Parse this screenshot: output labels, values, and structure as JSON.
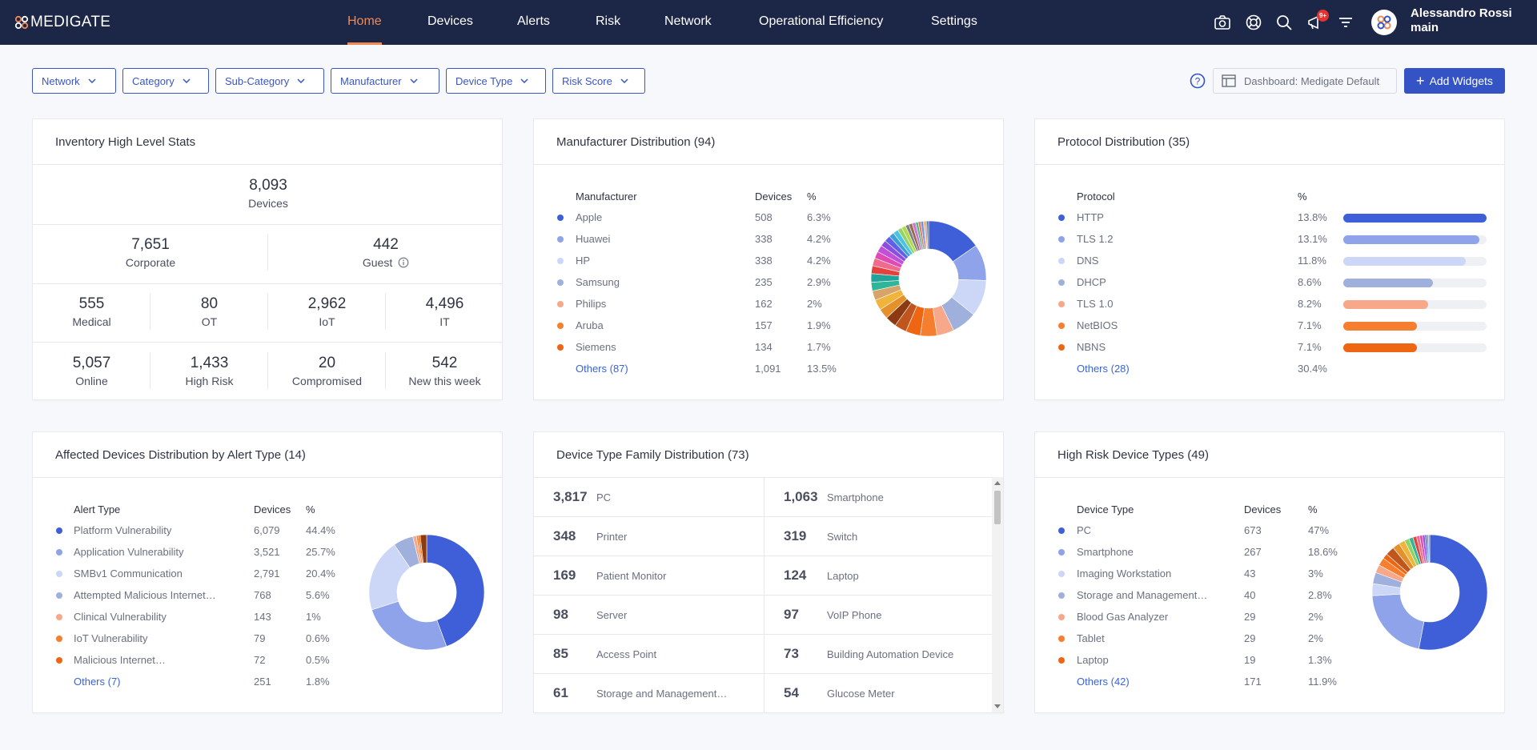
{
  "app": {
    "logo": "MEDIGATE"
  },
  "nav": {
    "items": [
      "Home",
      "Devices",
      "Alerts",
      "Risk",
      "Network",
      "Operational Efficiency",
      "Settings"
    ],
    "active": "Home",
    "notification_badge": "9+"
  },
  "user": {
    "name": "Alessandro Rossi",
    "tenant": "main"
  },
  "filters": [
    "Network",
    "Category",
    "Sub-Category",
    "Manufacturer",
    "Device Type",
    "Risk Score"
  ],
  "dashboard_select": "Dashboard: Medigate Default",
  "add_widgets_label": "Add Widgets",
  "inventory": {
    "title": "Inventory High Level Stats",
    "total": {
      "value": "8,093",
      "label": "Devices"
    },
    "row2": [
      {
        "value": "7,651",
        "label": "Corporate"
      },
      {
        "value": "442",
        "label": "Guest"
      }
    ],
    "row3": [
      {
        "value": "555",
        "label": "Medical"
      },
      {
        "value": "80",
        "label": "OT"
      },
      {
        "value": "2,962",
        "label": "IoT"
      },
      {
        "value": "4,496",
        "label": "IT"
      }
    ],
    "row4": [
      {
        "value": "5,057",
        "label": "Online",
        "color": "#3aa146"
      },
      {
        "value": "1,433",
        "label": "High Risk",
        "color": "#e5413c"
      },
      {
        "value": "20",
        "label": "Compromised",
        "color": "#e5413c"
      },
      {
        "value": "542",
        "label": "New this week",
        "color": "#3453c4"
      }
    ]
  },
  "manufacturer": {
    "title": "Manufacturer Distribution (94)",
    "headers": [
      "Manufacturer",
      "Devices",
      "%"
    ],
    "rows": [
      {
        "name": "Apple",
        "devices": "508",
        "pct": "6.3%",
        "color": "#3f5fd8"
      },
      {
        "name": "Huawei",
        "devices": "338",
        "pct": "4.2%",
        "color": "#8ea3ea"
      },
      {
        "name": "HP",
        "devices": "338",
        "pct": "4.2%",
        "color": "#ccd6f6"
      },
      {
        "name": "Samsung",
        "devices": "235",
        "pct": "2.9%",
        "color": "#9fb0dc"
      },
      {
        "name": "Philips",
        "devices": "162",
        "pct": "2%",
        "color": "#f7a88a"
      },
      {
        "name": "Aruba",
        "devices": "157",
        "pct": "1.9%",
        "color": "#f57f2f"
      },
      {
        "name": "Siemens",
        "devices": "134",
        "pct": "1.7%",
        "color": "#ee6512"
      }
    ],
    "others": {
      "name": "Others (87)",
      "devices": "1,091",
      "pct": "13.5%"
    }
  },
  "protocol": {
    "title": "Protocol Distribution (35)",
    "headers": [
      "Protocol",
      "%"
    ],
    "rows": [
      {
        "name": "HTTP",
        "pct": "13.8%",
        "value": 13.8,
        "color": "#3f5fd8"
      },
      {
        "name": "TLS 1.2",
        "pct": "13.1%",
        "value": 13.1,
        "color": "#8ea3ea"
      },
      {
        "name": "DNS",
        "pct": "11.8%",
        "value": 11.8,
        "color": "#ccd6f6"
      },
      {
        "name": "DHCP",
        "pct": "8.6%",
        "value": 8.6,
        "color": "#9fb0dc"
      },
      {
        "name": "TLS 1.0",
        "pct": "8.2%",
        "value": 8.2,
        "color": "#f7a88a"
      },
      {
        "name": "NetBIOS",
        "pct": "7.1%",
        "value": 7.1,
        "color": "#f57f2f"
      },
      {
        "name": "NBNS",
        "pct": "7.1%",
        "value": 7.1,
        "color": "#ee6512"
      }
    ],
    "others": {
      "name": "Others (28)",
      "pct": "30.4%"
    }
  },
  "alerts": {
    "title": "Affected Devices Distribution by Alert Type (14)",
    "headers": [
      "Alert Type",
      "Devices",
      "%"
    ],
    "rows": [
      {
        "name": "Platform Vulnerability",
        "devices": "6,079",
        "pct": "44.4%",
        "color": "#3f5fd8"
      },
      {
        "name": "Application Vulnerability",
        "devices": "3,521",
        "pct": "25.7%",
        "color": "#8ea3ea"
      },
      {
        "name": "SMBv1 Communication",
        "devices": "2,791",
        "pct": "20.4%",
        "color": "#ccd6f6"
      },
      {
        "name": "Attempted Malicious Internet…",
        "devices": "768",
        "pct": "5.6%",
        "color": "#9fb0dc"
      },
      {
        "name": "Clinical Vulnerability",
        "devices": "143",
        "pct": "1%",
        "color": "#f7a88a"
      },
      {
        "name": "IoT Vulnerability",
        "devices": "79",
        "pct": "0.6%",
        "color": "#f57f2f"
      },
      {
        "name": "Malicious Internet…",
        "devices": "72",
        "pct": "0.5%",
        "color": "#ee6512"
      }
    ],
    "others": {
      "name": "Others (7)",
      "devices": "251",
      "pct": "1.8%"
    }
  },
  "device_family": {
    "title": "Device Type Family Distribution (73)",
    "cells": [
      {
        "num": "3,817",
        "label": "PC"
      },
      {
        "num": "1,063",
        "label": "Smartphone"
      },
      {
        "num": "348",
        "label": "Printer"
      },
      {
        "num": "319",
        "label": "Switch"
      },
      {
        "num": "169",
        "label": "Patient Monitor"
      },
      {
        "num": "124",
        "label": "Laptop"
      },
      {
        "num": "98",
        "label": "Server"
      },
      {
        "num": "97",
        "label": "VoIP Phone"
      },
      {
        "num": "85",
        "label": "Access Point"
      },
      {
        "num": "73",
        "label": "Building Automation Device"
      },
      {
        "num": "61",
        "label": "Storage and Management…"
      },
      {
        "num": "54",
        "label": "Glucose Meter"
      }
    ]
  },
  "high_risk": {
    "title": "High Risk Device Types (49)",
    "headers": [
      "Device Type",
      "Devices",
      "%"
    ],
    "rows": [
      {
        "name": "PC",
        "devices": "673",
        "pct": "47%",
        "color": "#3f5fd8"
      },
      {
        "name": "Smartphone",
        "devices": "267",
        "pct": "18.6%",
        "color": "#8ea3ea"
      },
      {
        "name": "Imaging Workstation",
        "devices": "43",
        "pct": "3%",
        "color": "#ccd6f6"
      },
      {
        "name": "Storage and Management…",
        "devices": "40",
        "pct": "2.8%",
        "color": "#9fb0dc"
      },
      {
        "name": "Blood Gas Analyzer",
        "devices": "29",
        "pct": "2%",
        "color": "#f7a88a"
      },
      {
        "name": "Tablet",
        "devices": "29",
        "pct": "2%",
        "color": "#f57f2f"
      },
      {
        "name": "Laptop",
        "devices": "19",
        "pct": "1.3%",
        "color": "#ee6512"
      }
    ],
    "others": {
      "name": "Others (42)",
      "devices": "171",
      "pct": "11.9%"
    }
  },
  "chart_data": [
    {
      "type": "pie",
      "title": "Manufacturer Distribution (94)",
      "categories": [
        "Apple",
        "Huawei",
        "HP",
        "Samsung",
        "Philips",
        "Aruba",
        "Siemens",
        "Others (87)"
      ],
      "values": [
        6.3,
        4.2,
        4.2,
        2.9,
        2.0,
        1.9,
        1.7,
        13.5
      ],
      "colors": [
        "#3f5fd8",
        "#8ea3ea",
        "#ccd6f6",
        "#9fb0dc",
        "#f7a88a",
        "#f57f2f",
        "#ee6512",
        "#c0561d"
      ],
      "others_tail": [
        1.4,
        1.3,
        1.2,
        1.2,
        1.1,
        1.0,
        1.0,
        0.9,
        0.9,
        0.8,
        0.8,
        0.7,
        0.7,
        0.6,
        0.6,
        0.5,
        0.5,
        0.4,
        0.4,
        0.4,
        0.3,
        0.3,
        0.3,
        0.2,
        0.2,
        0.2
      ],
      "others_tail_colors": [
        "#c0561d",
        "#8b3a12",
        "#e4902b",
        "#f0b43b",
        "#d6a46a",
        "#2fb59a",
        "#22a39a",
        "#e5413c",
        "#f06a8e",
        "#e04ab3",
        "#c24fd8",
        "#8a4ee0",
        "#5f5fe8",
        "#3ba0d8",
        "#4cc3e0",
        "#8fd36a",
        "#b5d84b",
        "#7a7f8f",
        "#9a6b4a",
        "#c77ad0",
        "#52b788",
        "#e07a5f",
        "#6d8ee8",
        "#f2a65a",
        "#a0a0a0",
        "#55606e"
      ]
    },
    {
      "type": "bar",
      "title": "Protocol Distribution (35)",
      "categories": [
        "HTTP",
        "TLS 1.2",
        "DNS",
        "DHCP",
        "TLS 1.0",
        "NetBIOS",
        "NBNS"
      ],
      "values": [
        13.8,
        13.1,
        11.8,
        8.6,
        8.2,
        7.1,
        7.1
      ]
    },
    {
      "type": "pie",
      "title": "Affected Devices Distribution by Alert Type (14)",
      "categories": [
        "Platform Vulnerability",
        "Application Vulnerability",
        "SMBv1 Communication",
        "Attempted Malicious Internet…",
        "Clinical Vulnerability",
        "IoT Vulnerability",
        "Malicious Internet…",
        "Others (7)"
      ],
      "values": [
        44.4,
        25.7,
        20.4,
        5.6,
        1.0,
        0.6,
        0.5,
        1.8
      ],
      "colors": [
        "#3f5fd8",
        "#8ea3ea",
        "#ccd6f6",
        "#9fb0dc",
        "#f7a88a",
        "#f57f2f",
        "#ee6512",
        "#8b3a12"
      ]
    },
    {
      "type": "pie",
      "title": "High Risk Device Types (49)",
      "categories": [
        "PC",
        "Smartphone",
        "Imaging Workstation",
        "Storage and Management…",
        "Blood Gas Analyzer",
        "Tablet",
        "Laptop",
        "Others (42)"
      ],
      "values": [
        47,
        18.6,
        3,
        2.8,
        2,
        2,
        1.3,
        11.9
      ],
      "colors": [
        "#3f5fd8",
        "#8ea3ea",
        "#ccd6f6",
        "#9fb0dc",
        "#f7a88a",
        "#f57f2f",
        "#ee6512",
        "#c0561d"
      ],
      "others_tail": [
        2.2,
        1.8,
        1.5,
        1.2,
        1.0,
        0.9,
        0.8,
        0.7,
        0.6,
        0.5,
        0.4,
        0.3
      ],
      "others_tail_colors": [
        "#c0561d",
        "#e4902b",
        "#f0b43b",
        "#8fd36a",
        "#2fb59a",
        "#e5413c",
        "#f06a8e",
        "#e04ab3",
        "#8a4ee0",
        "#5f5fe8",
        "#3ba0d8",
        "#7a7f8f"
      ]
    }
  ]
}
